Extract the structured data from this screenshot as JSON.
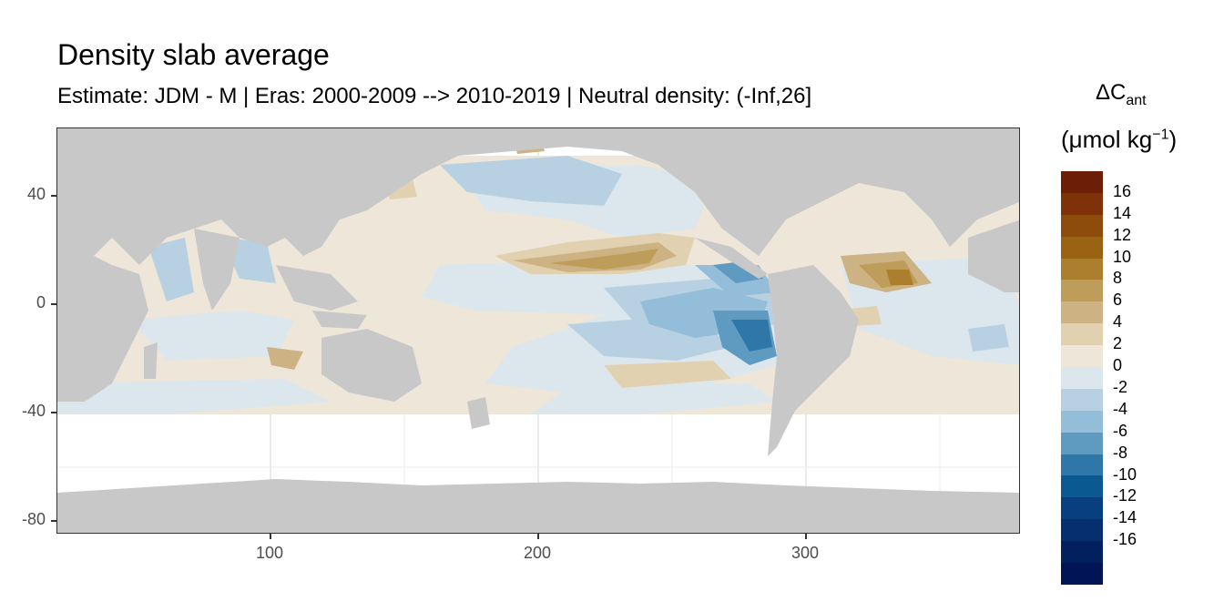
{
  "title": "Density slab average",
  "subtitle": "Estimate: JDM - M | Eras: 2000-2009 --> 2010-2019 | Neutral density: (-Inf,26]",
  "legend": {
    "title_main": "ΔC",
    "title_sub": "ant",
    "unit_pre": "(μmol kg",
    "unit_sup": "−1",
    "unit_post": ")",
    "labels": [
      "16",
      "14",
      "12",
      "10",
      "8",
      "6",
      "4",
      "2",
      "0",
      "-2",
      "-4",
      "-6",
      "-8",
      "-10",
      "-12",
      "-14",
      "-16"
    ],
    "colors": [
      "#6B1F07",
      "#7F3208",
      "#8D4B0C",
      "#9A6213",
      "#AB7F2E",
      "#BE9C59",
      "#CDB383",
      "#E2D1B0",
      "#EDE6D9",
      "#DCE6ED",
      "#B8D1E2",
      "#93BDD8",
      "#5F9BC1",
      "#2F77A8",
      "#0B5991",
      "#083F7F",
      "#052F6E",
      "#02205E",
      "#011556"
    ]
  },
  "axes": {
    "x_ticks": [
      "100",
      "200",
      "300"
    ],
    "y_ticks": [
      "40",
      "0",
      "-40",
      "-80"
    ]
  },
  "colors": {
    "land": "#C8C8C8",
    "ocean_missing": "#FFFFFF",
    "panel_border": "#333333",
    "grid": "#EBEBEB"
  },
  "chart_data": {
    "type": "heatmap",
    "title": "Density slab average",
    "subtitle": "Estimate: JDM - M | Eras: 2000-2009 --> 2010-2019 | Neutral density: (-Inf,26]",
    "x_range": [
      20,
      380
    ],
    "y_range": [
      -85,
      65
    ],
    "x_ticks": [
      100,
      200,
      300
    ],
    "y_ticks": [
      40,
      0,
      -40,
      -80
    ],
    "value_range": [
      -17,
      17
    ],
    "data_extent_lat": [
      -40,
      65
    ],
    "legend_placement": "right",
    "grid": true
  }
}
